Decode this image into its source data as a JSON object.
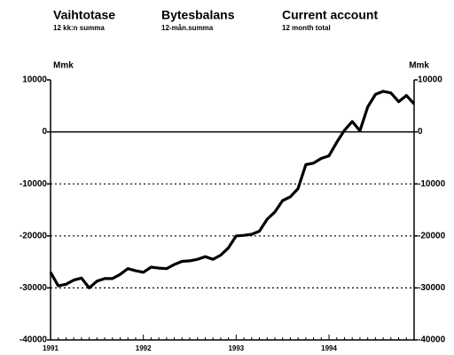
{
  "chart_data": {
    "type": "line",
    "headers": [
      {
        "title": "Vaihtotase",
        "subtitle": "12 kk:n summa"
      },
      {
        "title": "Bytesbalans",
        "subtitle": "12-mån.summa"
      },
      {
        "title": "Current account",
        "subtitle": "12 month total"
      }
    ],
    "ylabel": "Mmk",
    "y2label": "Mmk",
    "categories": [
      "1991",
      null,
      null,
      null,
      null,
      null,
      null,
      null,
      null,
      null,
      null,
      null,
      "1992",
      null,
      null,
      null,
      null,
      null,
      null,
      null,
      null,
      null,
      null,
      null,
      "1993",
      null,
      null,
      null,
      null,
      null,
      null,
      null,
      null,
      null,
      null,
      null,
      "1994",
      null,
      null,
      null,
      null,
      null,
      null,
      null,
      null,
      null,
      null,
      null
    ],
    "values": [
      -27000,
      -29600,
      -29300,
      -28500,
      -28100,
      -30000,
      -28700,
      -28200,
      -28200,
      -27400,
      -26300,
      -26700,
      -27000,
      -26000,
      -26200,
      -26300,
      -25500,
      -24900,
      -24800,
      -24500,
      -24000,
      -24500,
      -23700,
      -22300,
      -20000,
      -19900,
      -19700,
      -19100,
      -16800,
      -15400,
      -13200,
      -12500,
      -10900,
      -6300,
      -6000,
      -5100,
      -4600,
      -2000,
      300,
      2000,
      200,
      4800,
      7200,
      7800,
      7500,
      5800,
      7000,
      5400
    ],
    "color": "#000000",
    "ylim": [
      -40000,
      10000
    ],
    "yticks": [
      10000,
      0,
      -10000,
      -20000,
      -30000,
      -40000
    ],
    "grid": true
  }
}
